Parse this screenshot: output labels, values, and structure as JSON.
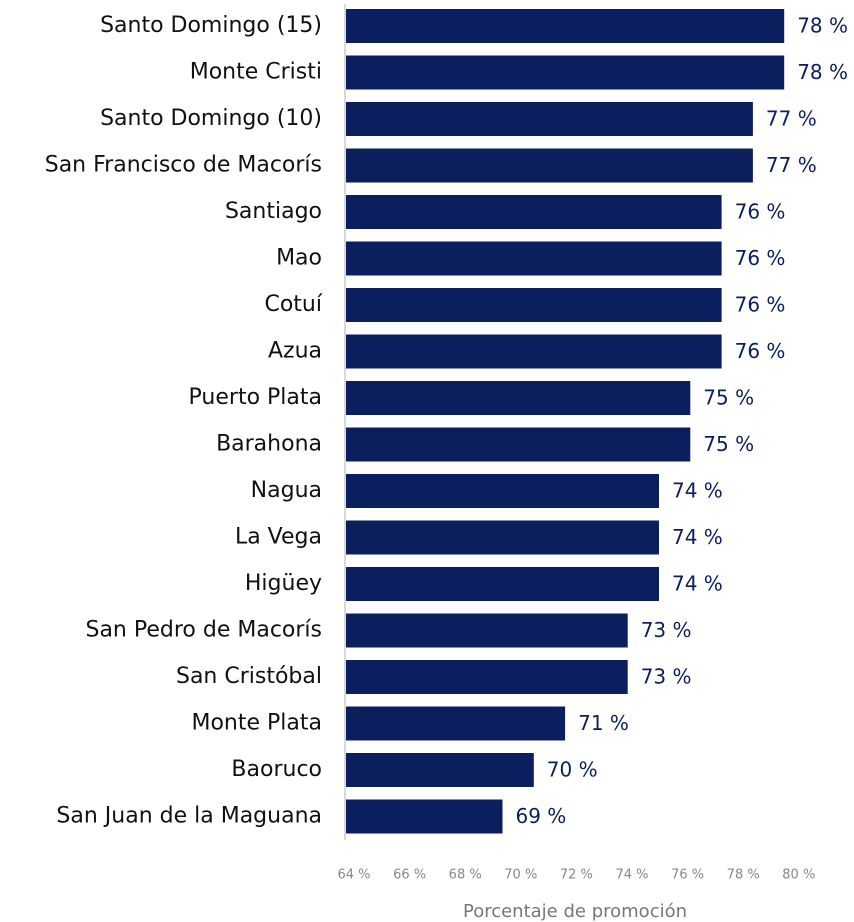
{
  "chart_data": {
    "type": "bar",
    "orientation": "horizontal",
    "color": "#0b1f5e",
    "categories": [
      "Santo Domingo (15)",
      "Monte Cristi",
      "Santo Domingo (10)",
      "San Francisco de Macorís",
      "Santiago",
      "Mao",
      "Cotuí",
      "Azua",
      "Puerto Plata",
      "Barahona",
      "Nagua",
      "La Vega",
      "Higüey",
      "San Pedro de Macorís",
      "San Cristóbal",
      "Monte Plata",
      "Baoruco",
      "San Juan de la Maguana"
    ],
    "values": [
      78,
      78,
      77,
      77,
      76,
      76,
      76,
      76,
      75,
      75,
      74,
      74,
      74,
      73,
      73,
      71,
      70,
      69
    ],
    "value_labels": [
      "78 %",
      "78 %",
      "77 %",
      "77 %",
      "76 %",
      "76 %",
      "76 %",
      "76 %",
      "75 %",
      "75 %",
      "74 %",
      "74 %",
      "74 %",
      "73 %",
      "73 %",
      "71 %",
      "70 %",
      "69 %"
    ],
    "xlim": [
      64,
      80
    ],
    "xticks": [
      {
        "value": 64,
        "label": "64 %"
      },
      {
        "value": 66,
        "label": "66 %"
      },
      {
        "value": 68,
        "label": "68 %"
      },
      {
        "value": 70,
        "label": "70 %"
      },
      {
        "value": 72,
        "label": "72 %"
      },
      {
        "value": 74,
        "label": "74 %"
      },
      {
        "value": 76,
        "label": "76 %"
      },
      {
        "value": 78,
        "label": "78 %"
      },
      {
        "value": 80,
        "label": "80 %"
      }
    ],
    "xlabel": "Porcentaje de promoción"
  }
}
